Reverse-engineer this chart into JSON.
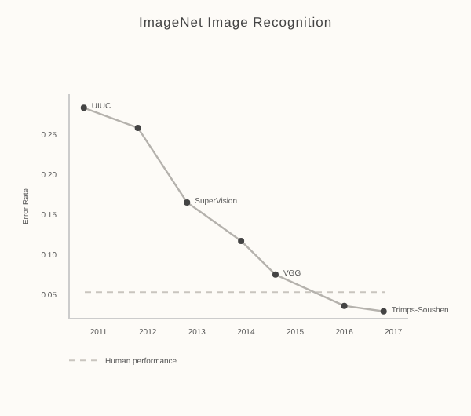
{
  "chart_data": {
    "type": "line",
    "title": "ImageNet Image Recognition",
    "ylabel": "Error Rate",
    "x": [
      2010.7,
      2011.8,
      2012.8,
      2013.9,
      2014.6,
      2016.0,
      2016.8
    ],
    "series": [
      {
        "color": "#b5b2ad",
        "values": [
          0.283,
          0.258,
          0.165,
          0.117,
          0.075,
          0.036,
          0.029
        ]
      }
    ],
    "marker": "circle",
    "xlim": [
      2010.4,
      2017.3
    ],
    "xticks": [
      2011,
      2012,
      2013,
      2014,
      2015,
      2016,
      2017
    ],
    "ylim": [
      0.02,
      0.3
    ],
    "yticks": [
      {
        "value": 0.05,
        "label": "0.05"
      },
      {
        "value": 0.1,
        "label": "0.10"
      },
      {
        "value": 0.15,
        "label": "0.15"
      },
      {
        "value": 0.2,
        "label": "0.20"
      },
      {
        "value": 0.25,
        "label": "0.25"
      }
    ],
    "ref_lines": [
      {
        "axis": "y",
        "value": 0.053,
        "label": "Human performance",
        "color": "#c9c5bf",
        "line_style": "dashed"
      }
    ],
    "annotations": [
      {
        "text": "UIUC",
        "x": 2010.7,
        "y": 0.283
      },
      {
        "text": "SuperVision",
        "x": 2012.8,
        "y": 0.165
      },
      {
        "text": "VGG",
        "x": 2014.6,
        "y": 0.075
      },
      {
        "text": "Trimps-Soushen",
        "x": 2016.8,
        "y": 0.029
      }
    ],
    "legend": "bottom left",
    "grid": false
  }
}
